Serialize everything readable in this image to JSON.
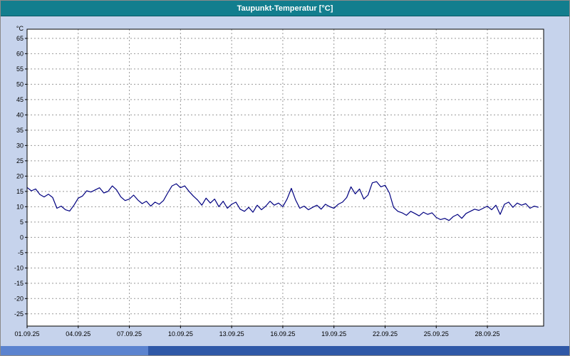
{
  "window": {
    "title": "Taupunkt-Temperatur [°C]"
  },
  "colors": {
    "background": "#c6d3ec",
    "titlebar": "#127e8e",
    "titlebar_text": "#ffffff",
    "plot_background": "#ffffff",
    "plot_border": "#000000",
    "grid": "#999999",
    "axis_text": "#000000",
    "line": "#000080",
    "bottombar": "#2f58a7",
    "bottombar_light": "#5b83cf"
  },
  "chart_data": {
    "type": "line",
    "title": "Taupunkt-Temperatur [°C]",
    "xlabel": "",
    "ylabel": "°C",
    "grid": true,
    "legend": "none",
    "ylim": [
      -29,
      68
    ],
    "y_ticks": [
      65,
      60,
      55,
      50,
      45,
      40,
      35,
      30,
      25,
      20,
      15,
      10,
      5,
      0,
      -5,
      -10,
      -15,
      -20,
      -25
    ],
    "xlim_days": [
      0,
      30.3
    ],
    "x_tick_days": [
      0,
      3,
      6,
      9,
      12,
      15,
      18,
      21,
      24,
      27
    ],
    "x_tick_labels": [
      "01.09.25",
      "04.09.25",
      "07.09.25",
      "10.09.25",
      "13.09.25",
      "16.09.25",
      "19.09.25",
      "22.09.25",
      "25.09.25",
      "28.09.25"
    ],
    "series": [
      {
        "name": "Taupunkt-Temperatur",
        "color": "#000080",
        "x_start_day": 0,
        "x_step_days": 0.25,
        "values": [
          16.3,
          15.2,
          15.8,
          14.0,
          13.2,
          14.1,
          13.0,
          9.5,
          10.2,
          9.0,
          8.6,
          10.5,
          12.8,
          13.5,
          15.2,
          14.8,
          15.5,
          16.2,
          14.5,
          15.0,
          16.8,
          15.5,
          13.2,
          12.0,
          12.5,
          13.8,
          12.2,
          11.0,
          11.8,
          10.2,
          11.5,
          10.8,
          12.0,
          14.5,
          16.8,
          17.5,
          16.2,
          16.8,
          15.0,
          13.5,
          12.2,
          10.5,
          12.8,
          11.2,
          12.5,
          10.0,
          11.8,
          9.5,
          10.8,
          11.5,
          9.2,
          8.5,
          9.8,
          8.2,
          10.5,
          9.0,
          10.2,
          11.8,
          10.5,
          11.2,
          10.0,
          12.5,
          16.0,
          12.2,
          9.5,
          10.2,
          9.0,
          9.8,
          10.5,
          9.2,
          10.8,
          10.0,
          9.5,
          10.8,
          11.5,
          13.0,
          16.5,
          14.2,
          15.8,
          12.5,
          13.8,
          17.8,
          18.2,
          16.5,
          17.0,
          14.5,
          9.8,
          8.5,
          8.0,
          7.2,
          8.5,
          7.8,
          7.0,
          8.2,
          7.5,
          8.0,
          6.5,
          5.8,
          6.2,
          5.5,
          6.8,
          7.5,
          6.2,
          7.8,
          8.5,
          9.2,
          8.8,
          9.5,
          10.2,
          9.0,
          10.5,
          7.5,
          10.8,
          11.5,
          9.8,
          11.2,
          10.5,
          11.0,
          9.5,
          10.2,
          9.8
        ]
      }
    ]
  }
}
